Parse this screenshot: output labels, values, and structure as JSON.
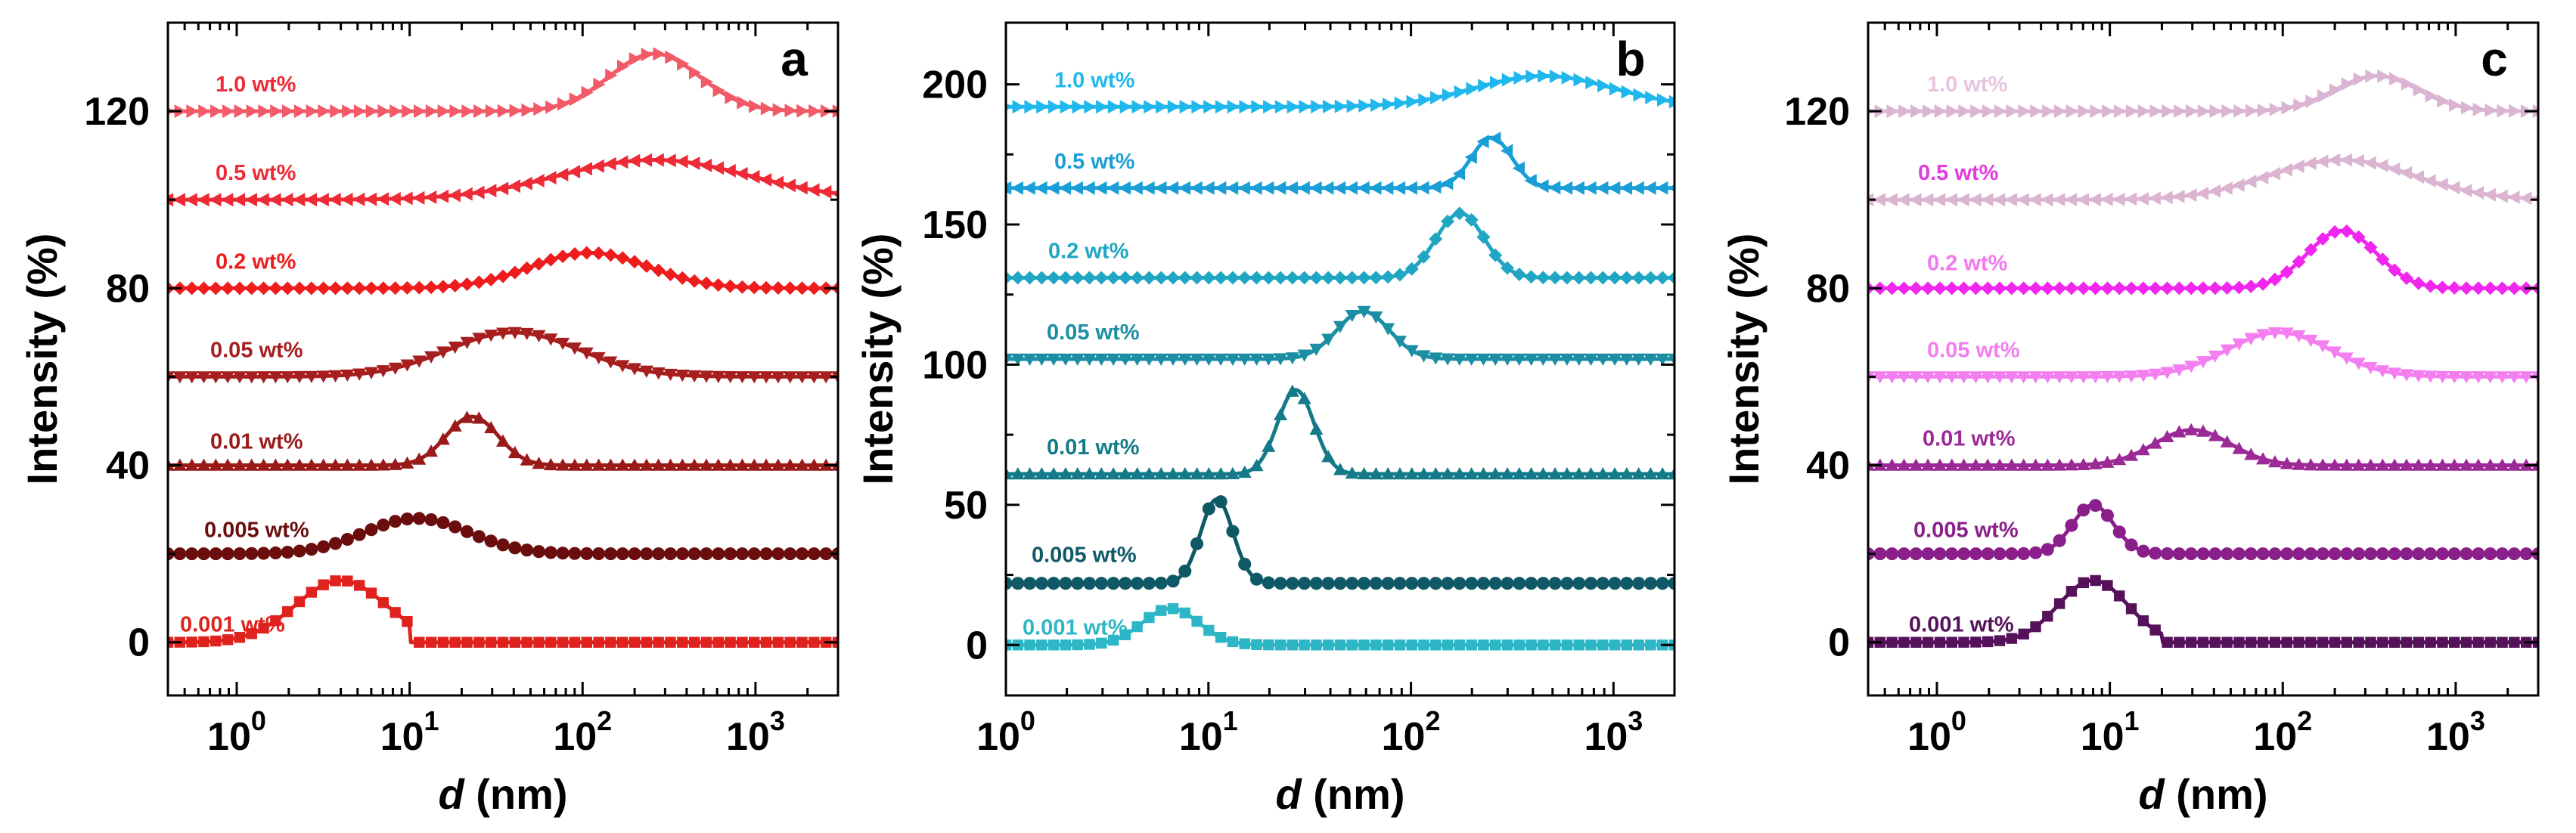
{
  "chart_data": [
    {
      "type": "line",
      "panel_label": "a",
      "xscale": "log",
      "xlim": [
        0.4,
        3000
      ],
      "ylim": [
        -12,
        140
      ],
      "xlabel_var": "d",
      "xlabel_unit": " (nm)",
      "ylabel": "Intensity  (%)",
      "xticks": [
        {
          "base": "10",
          "exp": "0"
        },
        {
          "base": "10",
          "exp": "1"
        },
        {
          "base": "10",
          "exp": "2"
        },
        {
          "base": "10",
          "exp": "3"
        }
      ],
      "yticks": [
        "0",
        "40",
        "80",
        "120"
      ],
      "series": [
        {
          "name": "0.001 wt%",
          "color": "#e0221e",
          "label_color": "#e0221e",
          "marker": "square",
          "offset": 0,
          "peak_d": 4,
          "amplitude": 14,
          "width": 0.26,
          "cutoff": 10
        },
        {
          "name": "0.005 wt%",
          "color": "#6b0d0d",
          "label_color": "#6b0d0d",
          "marker": "circle",
          "offset": 20,
          "peak_d": 11,
          "amplitude": 8,
          "width": 0.3
        },
        {
          "name": "0.01 wt%",
          "color": "#9a1a1a",
          "label_color": "#9a1a1a",
          "marker": "triangle-up",
          "offset": 40,
          "peak_d": 23,
          "amplitude": 11,
          "width": 0.15
        },
        {
          "name": "0.05 wt%",
          "color": "#a61e1e",
          "label_color": "#a61e1e",
          "marker": "triangle-down",
          "offset": 60,
          "peak_d": 40,
          "amplitude": 10,
          "width": 0.38
        },
        {
          "name": "0.2 wt%",
          "color": "#ee1c1c",
          "label_color": "#ee1c1c",
          "marker": "diamond",
          "offset": 80,
          "peak_d": 110,
          "amplitude": 8,
          "width": 0.34
        },
        {
          "name": "0.5 wt%",
          "color": "#ee2a36",
          "label_color": "#ee2a36",
          "marker": "triangle-left",
          "offset": 100,
          "peak_d": 260,
          "amplitude": 9,
          "width": 0.55
        },
        {
          "name": "1.0 wt%",
          "color": "#f25a68",
          "label_color": "#ee2a36",
          "marker": "triangle-right",
          "offset": 120,
          "peak_d": 260,
          "amplitude": 13,
          "width": 0.26
        }
      ]
    },
    {
      "type": "line",
      "panel_label": "b",
      "xscale": "log",
      "xlim": [
        1,
        2000
      ],
      "ylim": [
        -18,
        222
      ],
      "xlabel_var": "d",
      "xlabel_unit": " (nm)",
      "ylabel": "Intensity  (%)",
      "xticks": [
        {
          "base": "10",
          "exp": "0"
        },
        {
          "base": "10",
          "exp": "1"
        },
        {
          "base": "10",
          "exp": "2"
        },
        {
          "base": "10",
          "exp": "3"
        }
      ],
      "yticks": [
        "0",
        "50",
        "100",
        "150",
        "200"
      ],
      "series": [
        {
          "name": "0.001 wt%",
          "color": "#2cb6c6",
          "label_color": "#2cb6c6",
          "marker": "square",
          "offset": 0,
          "peak_d": 6.5,
          "amplitude": 13,
          "width": 0.14
        },
        {
          "name": "0.005 wt%",
          "color": "#0f5966",
          "label_color": "#0f5966",
          "marker": "circle",
          "offset": 22,
          "peak_d": 11,
          "amplitude": 30,
          "width": 0.08
        },
        {
          "name": "0.01 wt%",
          "color": "#147a8a",
          "label_color": "#147a8a",
          "marker": "triangle-up",
          "offset": 61,
          "peak_d": 27,
          "amplitude": 30,
          "width": 0.09
        },
        {
          "name": "0.05 wt%",
          "color": "#1b8ea4",
          "label_color": "#1b8ea4",
          "marker": "triangle-down",
          "offset": 102,
          "peak_d": 58,
          "amplitude": 17,
          "width": 0.13
        },
        {
          "name": "0.2 wt%",
          "color": "#1fa6c2",
          "label_color": "#1fa6c2",
          "marker": "diamond",
          "offset": 131,
          "peak_d": 175,
          "amplitude": 23,
          "width": 0.12
        },
        {
          "name": "0.5 wt%",
          "color": "#1a9ed6",
          "label_color": "#1a9ed6",
          "marker": "triangle-left",
          "offset": 163,
          "peak_d": 250,
          "amplitude": 18,
          "width": 0.1
        },
        {
          "name": "1.0 wt%",
          "color": "#20b8ec",
          "label_color": "#20b8ec",
          "marker": "triangle-right",
          "offset": 192,
          "peak_d": 450,
          "amplitude": 11,
          "width": 0.34
        }
      ]
    },
    {
      "type": "line",
      "panel_label": "c",
      "xscale": "log",
      "xlim": [
        0.4,
        3000
      ],
      "ylim": [
        -12,
        140
      ],
      "xlabel_var": "d",
      "xlabel_unit": " (nm)",
      "ylabel": "Intensity  (%)",
      "xticks": [
        {
          "base": "10",
          "exp": "0"
        },
        {
          "base": "10",
          "exp": "1"
        },
        {
          "base": "10",
          "exp": "2"
        },
        {
          "base": "10",
          "exp": "3"
        }
      ],
      "yticks": [
        "0",
        "40",
        "80",
        "120"
      ],
      "series": [
        {
          "name": "0.001 wt%",
          "color": "#55115a",
          "label_color": "#55115a",
          "marker": "square",
          "offset": 0,
          "peak_d": 8,
          "amplitude": 14,
          "width": 0.2,
          "cutoff": 20
        },
        {
          "name": "0.005 wt%",
          "color": "#8a1e8a",
          "label_color": "#8a1e8a",
          "marker": "circle",
          "offset": 20,
          "peak_d": 8,
          "amplitude": 11,
          "width": 0.12
        },
        {
          "name": "0.01 wt%",
          "color": "#9c2a96",
          "label_color": "#9c2a96",
          "marker": "triangle-up",
          "offset": 40,
          "peak_d": 30,
          "amplitude": 8,
          "width": 0.22
        },
        {
          "name": "0.05 wt%",
          "color": "#f27ef0",
          "label_color": "#f27ef0",
          "marker": "triangle-down",
          "offset": 60,
          "peak_d": 95,
          "amplitude": 10,
          "width": 0.3
        },
        {
          "name": "0.2 wt%",
          "color": "#f026ee",
          "label_color": "#f278f0",
          "marker": "diamond",
          "offset": 80,
          "peak_d": 220,
          "amplitude": 13,
          "width": 0.2
        },
        {
          "name": "0.5 wt%",
          "color": "#dbb4d2",
          "label_color": "#e23ce0",
          "marker": "triangle-left",
          "offset": 100,
          "peak_d": 220,
          "amplitude": 9,
          "width": 0.42
        },
        {
          "name": "1.0 wt%",
          "color": "#dbb4d4",
          "label_color": "#e8c4e0",
          "marker": "triangle-right",
          "offset": 120,
          "peak_d": 350,
          "amplitude": 8,
          "width": 0.24
        }
      ]
    }
  ]
}
